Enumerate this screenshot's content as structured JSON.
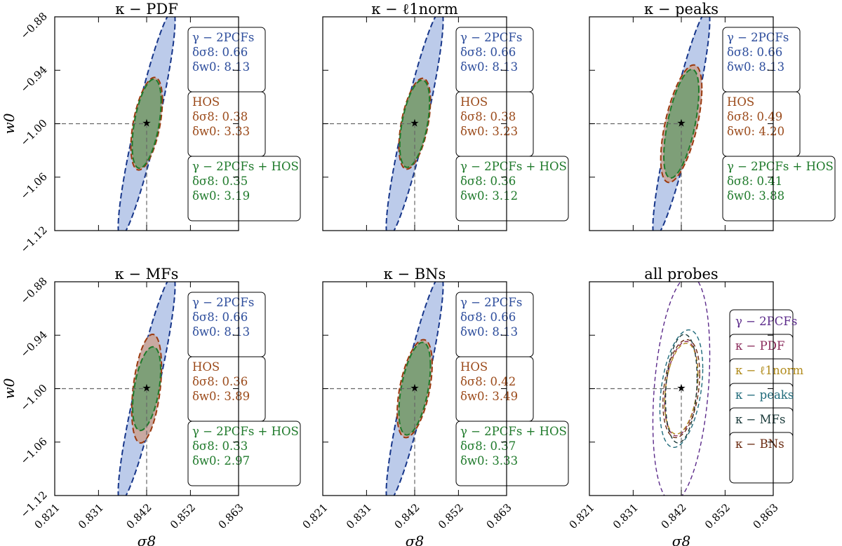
{
  "chart_data": {
    "type": "scatter",
    "x_axis": {
      "label": "σ8",
      "range": [
        0.821,
        0.863
      ],
      "ticks": [
        0.821,
        0.831,
        0.842,
        0.852,
        0.863
      ],
      "tick_labels": [
        "0.821",
        "0.831",
        "0.842",
        "0.852",
        "0.863"
      ]
    },
    "y_axis": {
      "label": "w0",
      "range": [
        -1.12,
        -0.88
      ],
      "ticks": [
        -1.12,
        -1.06,
        -1.0,
        -0.94,
        -0.88
      ],
      "tick_labels": [
        "−1.12",
        "−1.06",
        "−1.00",
        "−0.94",
        "−0.88"
      ]
    },
    "fiducial": {
      "sigma8": 0.842,
      "w0": -1.0
    },
    "colors": {
      "gamma_line": "#17368a",
      "gamma_fill": "#bccbea",
      "hos_line": "#9b3a0f",
      "hos_fill": "#c9a9a1",
      "combined_line": "#1f7a2b",
      "combined_fill": "#7e9f78",
      "gamma_text": "#2d4d9c",
      "hos_text": "#9b4a1a",
      "combined_text": "#1f7a2b"
    },
    "panels": [
      {
        "title": "κ − PDF",
        "gamma_box": {
          "name": "γ − 2PCFs",
          "dsigma8": "δσ8: 0.66",
          "dw0": "δw0: 8.13"
        },
        "hos_box": {
          "name": "HOS",
          "dsigma8": "δσ8: 0.38",
          "dw0": "δw0: 3.33"
        },
        "combined_box": {
          "name": "γ − 2PCFs + HOS",
          "dsigma8": "δσ8: 0.35",
          "dw0": "δw0: 3.19"
        },
        "ellipses": {
          "gamma": {
            "dsigma8": 0.0065,
            "dw0": 0.127,
            "corr": 0.91
          },
          "hos": {
            "dsigma8": 0.0036,
            "dw0": 0.052,
            "corr": 0.5
          },
          "combined": {
            "dsigma8": 0.0033,
            "dw0": 0.05,
            "corr": 0.5
          }
        }
      },
      {
        "title": "κ − ℓ1norm",
        "gamma_box": {
          "name": "γ − 2PCFs",
          "dsigma8": "δσ8: 0.66",
          "dw0": "δw0: 8.13"
        },
        "hos_box": {
          "name": "HOS",
          "dsigma8": "δσ8: 0.38",
          "dw0": "δw0: 3.23"
        },
        "combined_box": {
          "name": "γ − 2PCFs + HOS",
          "dsigma8": "δσ8: 0.36",
          "dw0": "δw0: 3.12"
        },
        "ellipses": {
          "gamma": {
            "dsigma8": 0.0065,
            "dw0": 0.127,
            "corr": 0.91
          },
          "hos": {
            "dsigma8": 0.0036,
            "dw0": 0.051,
            "corr": 0.5
          },
          "combined": {
            "dsigma8": 0.0034,
            "dw0": 0.049,
            "corr": 0.5
          }
        }
      },
      {
        "title": "κ − peaks",
        "gamma_box": {
          "name": "γ − 2PCFs",
          "dsigma8": "δσ8: 0.66",
          "dw0": "δw0: 8.13"
        },
        "hos_box": {
          "name": "HOS",
          "dsigma8": "δσ8: 0.49",
          "dw0": "δw0: 4.20"
        },
        "combined_box": {
          "name": "γ − 2PCFs + HOS",
          "dsigma8": "δσ8: 0.41",
          "dw0": "δw0: 3.88"
        },
        "ellipses": {
          "gamma": {
            "dsigma8": 0.0065,
            "dw0": 0.127,
            "corr": 0.91
          },
          "hos": {
            "dsigma8": 0.0047,
            "dw0": 0.066,
            "corr": 0.6
          },
          "combined": {
            "dsigma8": 0.004,
            "dw0": 0.061,
            "corr": 0.6
          }
        }
      },
      {
        "title": "κ − MFs",
        "gamma_box": {
          "name": "γ − 2PCFs",
          "dsigma8": "δσ8: 0.66",
          "dw0": "δw0: 8.13"
        },
        "hos_box": {
          "name": "HOS",
          "dsigma8": "δσ8: 0.36",
          "dw0": "δw0: 3.89"
        },
        "combined_box": {
          "name": "γ − 2PCFs + HOS",
          "dsigma8": "δσ8: 0.33",
          "dw0": "δw0: 2.97"
        },
        "ellipses": {
          "gamma": {
            "dsigma8": 0.0065,
            "dw0": 0.127,
            "corr": 0.91
          },
          "hos": {
            "dsigma8": 0.0034,
            "dw0": 0.061,
            "corr": 0.4
          },
          "combined": {
            "dsigma8": 0.0032,
            "dw0": 0.047,
            "corr": 0.45
          }
        }
      },
      {
        "title": "κ − BNs",
        "gamma_box": {
          "name": "γ − 2PCFs",
          "dsigma8": "δσ8: 0.66",
          "dw0": "δw0: 8.13"
        },
        "hos_box": {
          "name": "HOS",
          "dsigma8": "δσ8: 0.42",
          "dw0": "δw0: 3.49"
        },
        "combined_box": {
          "name": "γ − 2PCFs + HOS",
          "dsigma8": "δσ8: 0.37",
          "dw0": "δw0: 3.33"
        },
        "ellipses": {
          "gamma": {
            "dsigma8": 0.0065,
            "dw0": 0.127,
            "corr": 0.91
          },
          "hos": {
            "dsigma8": 0.004,
            "dw0": 0.055,
            "corr": 0.5
          },
          "combined": {
            "dsigma8": 0.0036,
            "dw0": 0.052,
            "corr": 0.5
          }
        }
      },
      {
        "title": "all probes",
        "legend": [
          {
            "label": "γ − 2PCFs",
            "color": "#5b2a8a"
          },
          {
            "label": "κ − PDF",
            "color": "#8a2a5a"
          },
          {
            "label": "κ − ℓ1norm",
            "color": "#b08a1a"
          },
          {
            "label": "κ − peaks",
            "color": "#1f6a7a"
          },
          {
            "label": "κ − MFs",
            "color": "#1a3a3a"
          },
          {
            "label": "κ − BNs",
            "color": "#6a2a10"
          }
        ],
        "ellipses": [
          {
            "probe": "γ − 2PCFs",
            "dsigma8": 0.0065,
            "dw0": 0.127,
            "corr": 0.3
          },
          {
            "probe": "κ − PDF",
            "dsigma8": 0.0038,
            "dw0": 0.053,
            "corr": 0.3
          },
          {
            "probe": "κ − ℓ1norm",
            "dsigma8": 0.0038,
            "dw0": 0.051,
            "corr": 0.3
          },
          {
            "probe": "κ − peaks",
            "dsigma8": 0.0049,
            "dw0": 0.066,
            "corr": 0.35
          },
          {
            "probe": "κ − MFs",
            "dsigma8": 0.0036,
            "dw0": 0.061,
            "corr": 0.2
          },
          {
            "probe": "κ − BNs",
            "dsigma8": 0.0042,
            "dw0": 0.055,
            "corr": 0.3
          }
        ]
      }
    ]
  }
}
